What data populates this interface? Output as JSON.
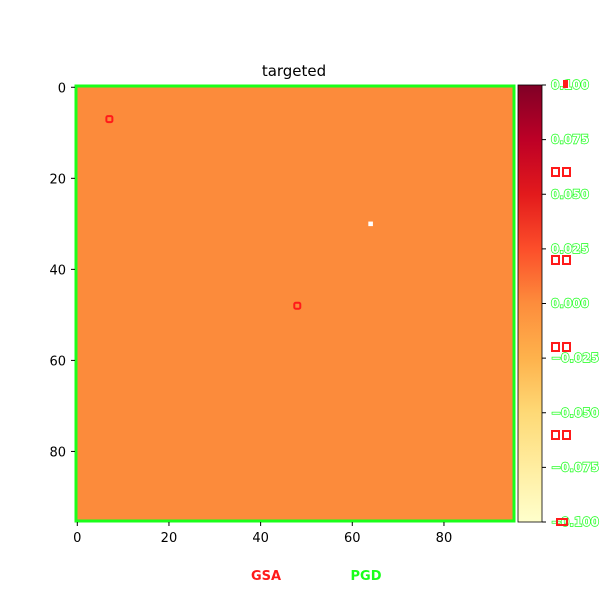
{
  "chart_data": {
    "type": "heatmap",
    "title": "targeted",
    "xlabel": "",
    "ylabel": "",
    "grid_size": 96,
    "fill_value": 0.0,
    "fill_color": "#fc8b3b",
    "x_ticks": [
      0,
      20,
      40,
      60,
      80
    ],
    "y_ticks": [
      0,
      20,
      40,
      60,
      80
    ],
    "colorbar": {
      "colormap": "YlOrRd",
      "vmin": -0.1,
      "vmax": 0.1,
      "ticks": [
        -0.1,
        -0.075,
        -0.05,
        -0.025,
        0.0,
        0.025,
        0.05,
        0.075,
        0.1
      ],
      "tick_labels": [
        "−0.100",
        "−0.075",
        "−0.050",
        "−0.025",
        "0.000",
        "0.025",
        "0.050",
        "0.075",
        "0.100"
      ]
    },
    "pixel_markers": [
      {
        "method": "GSA",
        "row": 7,
        "col": 7
      },
      {
        "method": "GSA",
        "row": 48,
        "col": 48
      }
    ],
    "white_pixels": [
      {
        "row": 30,
        "col": 64
      }
    ],
    "legend": [
      {
        "label": "GSA",
        "color": "#ff1a1a"
      },
      {
        "label": "PGD",
        "color": "#1aff1a"
      }
    ]
  }
}
